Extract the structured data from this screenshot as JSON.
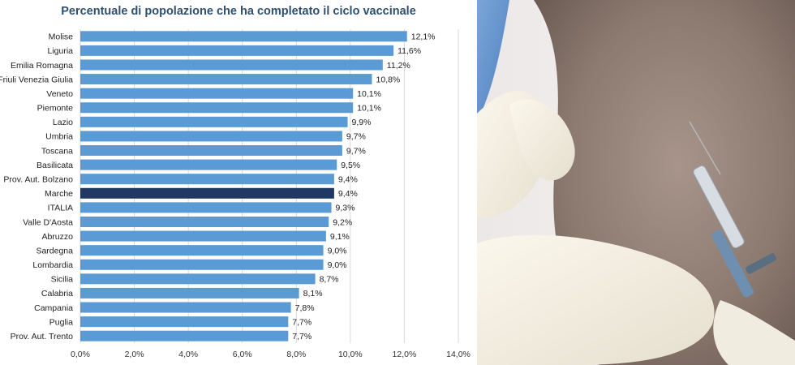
{
  "chart_data": {
    "type": "bar",
    "orientation": "horizontal",
    "title": "Percentuale di popolazione che ha completato il ciclo vaccinale",
    "categories": [
      "Molise",
      "Liguria",
      "Emilia Romagna",
      "Friuli Venezia Giulia",
      "Veneto",
      "Piemonte",
      "Lazio",
      "Umbria",
      "Toscana",
      "Basilicata",
      "Prov. Aut. Bolzano",
      "Marche",
      "ITALIA",
      "Valle D'Aosta",
      "Abruzzo",
      "Sardegna",
      "Lombardia",
      "Sicilia",
      "Calabria",
      "Campania",
      "Puglia",
      "Prov. Aut. Trento"
    ],
    "values": [
      12.1,
      11.6,
      11.2,
      10.8,
      10.1,
      10.1,
      9.9,
      9.7,
      9.7,
      9.5,
      9.4,
      9.4,
      9.3,
      9.2,
      9.1,
      9.0,
      9.0,
      8.7,
      8.1,
      7.8,
      7.7,
      7.7
    ],
    "value_labels": [
      "12,1%",
      "11,6%",
      "11,2%",
      "10,8%",
      "10,1%",
      "10,1%",
      "9,9%",
      "9,7%",
      "9,7%",
      "9,5%",
      "9,4%",
      "9,4%",
      "9,3%",
      "9,2%",
      "9,1%",
      "9,0%",
      "9,0%",
      "8,7%",
      "8,1%",
      "7,8%",
      "7,7%",
      "7,7%"
    ],
    "x_ticks": [
      0,
      2,
      4,
      6,
      8,
      10,
      12,
      14
    ],
    "x_tick_labels": [
      "0,0%",
      "2,0%",
      "4,0%",
      "6,0%",
      "8,0%",
      "10,0%",
      "12,0%",
      "14,0%"
    ],
    "xlim": [
      0,
      14
    ],
    "grid": true,
    "highlight_category": "Marche",
    "colors": {
      "bar": "#5b9bd5",
      "highlight": "#1f3864",
      "grid": "#d9d9d9",
      "title": "#2f4f6f"
    }
  }
}
